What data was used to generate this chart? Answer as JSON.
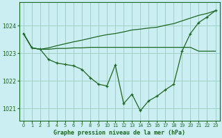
{
  "title": "Graphe pression niveau de la mer (hPa)",
  "background_color": "#cbeef3",
  "plot_bg_color": "#cbeef3",
  "grid_color": "#99ccbb",
  "line_color": "#1a6620",
  "xlim": [
    -0.5,
    23.5
  ],
  "ylim": [
    1020.55,
    1024.85
  ],
  "yticks": [
    1021,
    1022,
    1023,
    1024
  ],
  "xticks": [
    0,
    1,
    2,
    3,
    4,
    5,
    6,
    7,
    8,
    9,
    10,
    11,
    12,
    13,
    14,
    15,
    16,
    17,
    18,
    19,
    20,
    21,
    22,
    23
  ],
  "main_line": [
    1023.72,
    1023.2,
    1023.15,
    1022.78,
    1022.65,
    1022.6,
    1022.55,
    1022.42,
    1022.12,
    1021.88,
    1021.82,
    1022.58,
    1021.18,
    1021.52,
    1020.92,
    1021.28,
    1021.45,
    1021.68,
    1021.88,
    1023.08,
    1023.72,
    1024.12,
    1024.32,
    1024.55
  ],
  "upper_flat_line": [
    1023.72,
    1023.2,
    1023.15,
    1023.15,
    1023.18,
    1023.18,
    1023.2,
    1023.2,
    1023.22,
    1023.22,
    1023.22,
    1023.22,
    1023.22,
    1023.22,
    1023.22,
    1023.22,
    1023.22,
    1023.22,
    1023.22,
    1023.22,
    1023.22,
    1023.08,
    1023.08,
    1023.08
  ],
  "upper_diagonal_line": [
    1023.72,
    1023.2,
    1023.15,
    1023.2,
    1023.28,
    1023.35,
    1023.42,
    1023.48,
    1023.55,
    1023.62,
    1023.68,
    1023.72,
    1023.78,
    1023.85,
    1023.88,
    1023.92,
    1023.95,
    1024.02,
    1024.08,
    1024.18,
    1024.28,
    1024.38,
    1024.45,
    1024.55
  ]
}
